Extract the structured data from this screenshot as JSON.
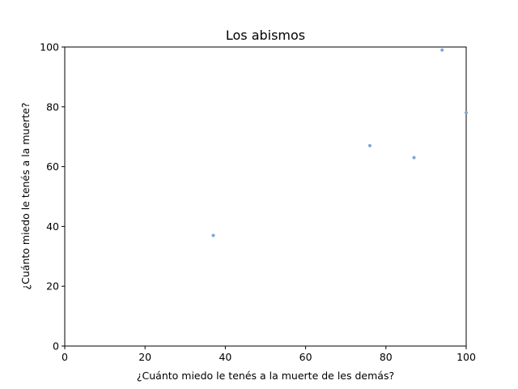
{
  "chart_data": {
    "type": "scatter",
    "title": "Los abismos",
    "xlabel": "¿Cuánto miedo le tenés a la muerte de les demás?",
    "ylabel": "¿Cuánto miedo le tenés a la muerte?",
    "xlim": [
      0,
      100
    ],
    "ylim": [
      0,
      100
    ],
    "xticks": [
      "0",
      "20",
      "40",
      "60",
      "80",
      "100"
    ],
    "yticks": [
      "0",
      "20",
      "40",
      "60",
      "80",
      "100"
    ],
    "grid": false,
    "point_color": "#7aa6d6",
    "points": [
      {
        "x": 37,
        "y": 37
      },
      {
        "x": 76,
        "y": 67
      },
      {
        "x": 87,
        "y": 63
      },
      {
        "x": 94,
        "y": 99
      },
      {
        "x": 100,
        "y": 78
      }
    ]
  }
}
